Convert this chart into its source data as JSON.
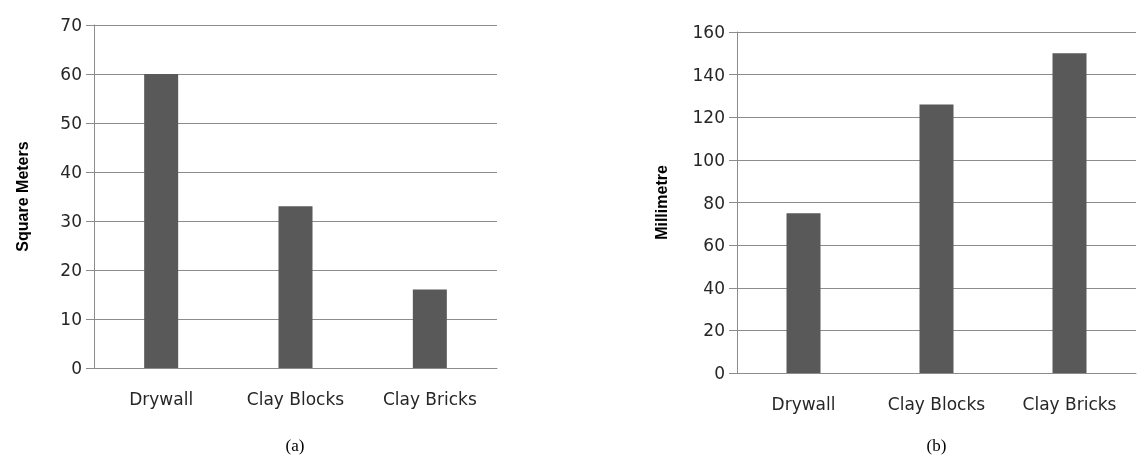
{
  "chart_data": [
    {
      "type": "bar",
      "categories": [
        "Drywall",
        "Clay Blocks",
        "Clay Bricks"
      ],
      "values": [
        60,
        33,
        16
      ],
      "color": "#595959",
      "ylabel": "Square Meters",
      "ylim": [
        0,
        70
      ],
      "yticks": [
        0,
        10,
        20,
        30,
        40,
        50,
        60,
        70
      ],
      "grid": "y",
      "annotations": [
        "(a)"
      ]
    },
    {
      "type": "bar",
      "categories": [
        "Drywall",
        "Clay Blocks",
        "Clay Bricks"
      ],
      "values": [
        75,
        126,
        150
      ],
      "color": "#595959",
      "ylabel": "Millimetre",
      "ylim": [
        0,
        160
      ],
      "yticks": [
        0,
        20,
        40,
        60,
        80,
        100,
        120,
        140,
        160
      ],
      "grid": "y",
      "annotations": [
        "(b)"
      ]
    }
  ]
}
